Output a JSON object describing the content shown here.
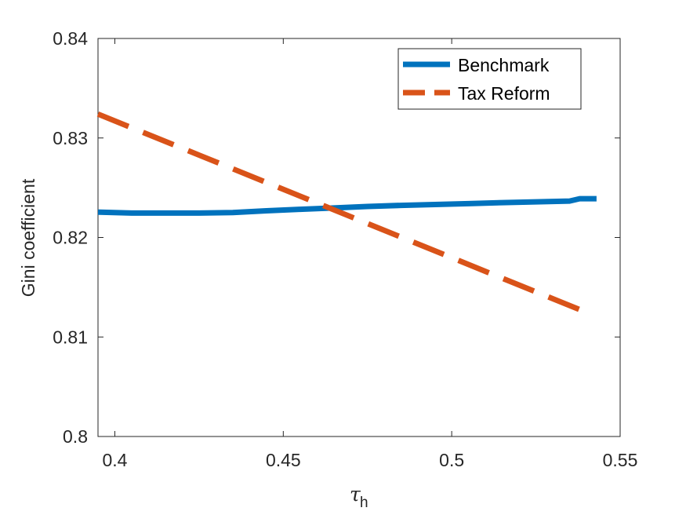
{
  "chart_data": {
    "type": "line",
    "title": "",
    "xlabel": "τ",
    "xlabel_sub": "h",
    "ylabel": "Gini coefficient",
    "xlim": [
      0.395,
      0.55
    ],
    "ylim": [
      0.8,
      0.84
    ],
    "xticks": [
      0.4,
      0.45,
      0.5,
      0.55
    ],
    "xtick_labels": [
      "0.4",
      "0.45",
      "0.5",
      "0.55"
    ],
    "yticks": [
      0.8,
      0.81,
      0.82,
      0.83,
      0.84
    ],
    "ytick_labels": [
      "0.8",
      "0.81",
      "0.82",
      "0.83",
      "0.84"
    ],
    "grid": false,
    "legend_position": "top-right",
    "series": [
      {
        "name": "Benchmark",
        "color": "#0072BD",
        "style": "solid",
        "x": [
          0.395,
          0.405,
          0.415,
          0.425,
          0.435,
          0.445,
          0.455,
          0.465,
          0.475,
          0.485,
          0.495,
          0.505,
          0.515,
          0.525,
          0.535,
          0.538,
          0.543
        ],
        "y": [
          0.82255,
          0.82245,
          0.82245,
          0.82245,
          0.8225,
          0.82268,
          0.82283,
          0.82297,
          0.82312,
          0.82323,
          0.82331,
          0.8234,
          0.8235,
          0.82358,
          0.82366,
          0.8239,
          0.8239
        ]
      },
      {
        "name": "Tax Reform",
        "color": "#D95319",
        "style": "dashed",
        "x": [
          0.395,
          0.542
        ],
        "y": [
          0.8324,
          0.8122
        ]
      }
    ]
  }
}
